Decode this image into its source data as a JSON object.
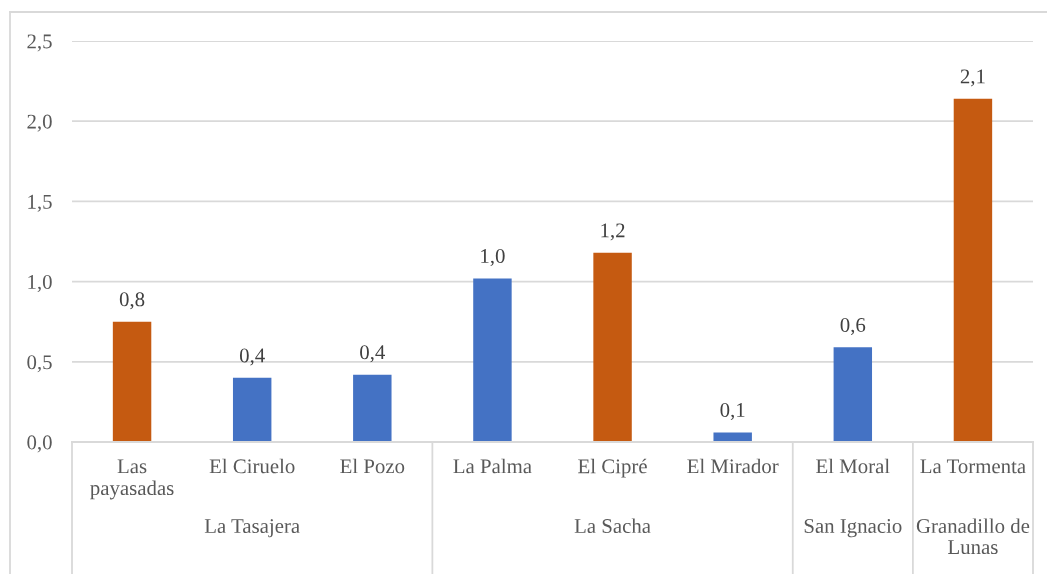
{
  "chart_data": {
    "type": "bar",
    "categories": [
      "Las payasadas",
      "El Ciruelo",
      "El Pozo",
      "La Palma",
      "El Cipré",
      "El Mirador",
      "El Moral",
      "La Tormenta"
    ],
    "values": [
      0.75,
      0.4,
      0.42,
      1.02,
      1.18,
      0.06,
      0.59,
      2.14
    ],
    "colors": [
      "#c55a11",
      "#4472c4",
      "#4472c4",
      "#4472c4",
      "#c55a11",
      "#4472c4",
      "#4472c4",
      "#c55a11"
    ],
    "value_labels": [
      "0,8",
      "0,4",
      "0,4",
      "1,0",
      "1,2",
      "0,1",
      "0,6",
      "2,1"
    ],
    "ylim": [
      0,
      2.5
    ],
    "yticks": [
      {
        "value": 0,
        "label": "0,0"
      },
      {
        "value": 0.5,
        "label": "0,5"
      },
      {
        "value": 1,
        "label": "1,0"
      },
      {
        "value": 1.5,
        "label": "1,5"
      },
      {
        "value": 2,
        "label": "2,0"
      },
      {
        "value": 2.5,
        "label": "2,5"
      }
    ],
    "grid": "y",
    "annotations": [
      "La Tasajera",
      "La Sacha",
      "San Ignacio",
      "Granadillo de Lunas"
    ]
  }
}
